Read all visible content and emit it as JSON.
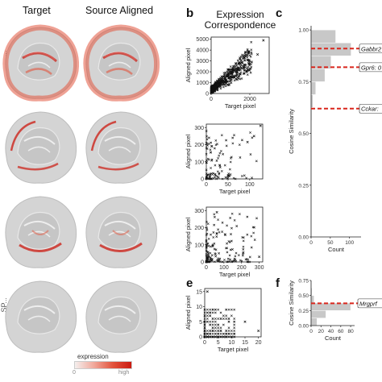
{
  "columns": {
    "target": "Target",
    "source": "Source Aligned"
  },
  "panels": {
    "b": "b",
    "c": "c",
    "e": "e",
    "f": "f",
    "b_title_line1": "Expression",
    "b_title_line2": "Correspondence"
  },
  "rows": [
    {
      "label": "...",
      "pattern": "cortex"
    },
    {
      "label": "...",
      "pattern": "band"
    },
    {
      "label": "...",
      "pattern": "inner"
    },
    {
      "label": "...SP...",
      "pattern": "none"
    }
  ],
  "legend": {
    "title": "expression",
    "low": "0",
    "high": "high"
  },
  "colors": {
    "high": "#cc1a10",
    "mid": "#e2553e",
    "tissue": "#cfcfcf",
    "hist": "#c8c8c8",
    "dash": "#d9261c"
  },
  "chart_data": [
    {
      "type": "scatter",
      "title": "",
      "xlabel": "Target pixel",
      "ylabel": "Aligned pixel",
      "xlim": [
        0,
        3000
      ],
      "ylim": [
        0,
        5200
      ],
      "xticks": [
        "0",
        "2000"
      ],
      "yticks": [
        "0",
        "1000",
        "2000",
        "3000",
        "4000",
        "5000"
      ],
      "seed": 11,
      "points_description": "dense cloud 0-2000 target, 0-3000 aligned",
      "outliers": [
        [
          2700,
          4900
        ],
        [
          2400,
          3600
        ],
        [
          2100,
          2900
        ]
      ]
    },
    {
      "type": "scatter",
      "title": "",
      "xlabel": "Target pixel",
      "ylabel": "Aligned pixel",
      "xlim": [
        0,
        130
      ],
      "ylim": [
        0,
        320
      ],
      "xticks": [
        "0",
        "50",
        "100"
      ],
      "yticks": [
        "0",
        "100",
        "200",
        "300"
      ],
      "seed": 23,
      "outliers": [
        [
          125,
          310
        ],
        [
          110,
          250
        ],
        [
          95,
          215
        ]
      ]
    },
    {
      "type": "scatter",
      "title": "",
      "xlabel": "Target pixel",
      "ylabel": "Aligned pixel",
      "xlim": [
        0,
        320
      ],
      "ylim": [
        0,
        320
      ],
      "xticks": [
        "0",
        "100",
        "200",
        "300"
      ],
      "yticks": [
        "0",
        "100",
        "200",
        "300"
      ],
      "seed": 37,
      "outliers": [
        [
          300,
          30
        ],
        [
          210,
          55
        ],
        [
          60,
          290
        ]
      ]
    },
    {
      "type": "scatter",
      "title": "",
      "xlabel": "Target pixel",
      "ylabel": "Aligned pixel",
      "xlim": [
        0,
        21
      ],
      "ylim": [
        0,
        16
      ],
      "xticks": [
        "0",
        "5",
        "10",
        "15",
        "20"
      ],
      "yticks": [
        "0",
        "5",
        "10",
        "15"
      ],
      "seed": 53,
      "outliers": [
        [
          20,
          2
        ],
        [
          15,
          5
        ],
        [
          1,
          15
        ]
      ]
    },
    {
      "type": "bar",
      "orientation": "horizontal",
      "title": "",
      "xlabel": "Count",
      "ylabel": "Cosine Similarity",
      "xlim": [
        0,
        130
      ],
      "ylim": [
        0,
        1.02
      ],
      "xticks": [
        "0",
        "50",
        "100"
      ],
      "yticks": [
        "0.00",
        "0.25",
        "0.50",
        "0.75",
        "1.00"
      ],
      "bins_from": 0.0,
      "bin_width": 0.0625,
      "counts": [
        0,
        0,
        0,
        0,
        0,
        0,
        0,
        0,
        0,
        2,
        5,
        12,
        36,
        52,
        104,
        64
      ],
      "lines": [
        {
          "y": 0.91,
          "label": "Gabbr2"
        },
        {
          "y": 0.82,
          "label": "Gpr6: 0"
        },
        {
          "y": 0.62,
          "label": "Cckar:"
        }
      ]
    },
    {
      "type": "bar",
      "orientation": "horizontal",
      "title": "",
      "xlabel": "Count",
      "ylabel": "Cosine Similarity",
      "xlim": [
        0,
        88
      ],
      "ylim": [
        0,
        0.75
      ],
      "xticks": [
        "0",
        "20",
        "40",
        "60",
        "80"
      ],
      "yticks": [
        "0.00",
        "0.25",
        "0.50",
        "0.75"
      ],
      "bins_from": 0.0,
      "bin_width": 0.125,
      "counts": [
        12,
        30,
        80,
        6,
        2,
        0
      ],
      "lines": [
        {
          "y": 0.37,
          "label": "Mrgprf"
        }
      ]
    }
  ]
}
